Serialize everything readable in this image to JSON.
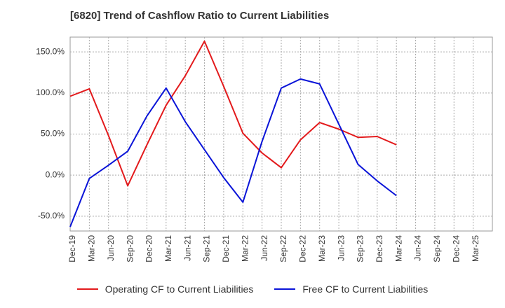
{
  "title": "[6820]  Trend of Cashflow Ratio to Current Liabilities",
  "chart_data": {
    "type": "line",
    "title": "[6820]  Trend of Cashflow Ratio to Current Liabilities",
    "categories": [
      "Dec-19",
      "Mar-20",
      "Jun-20",
      "Sep-20",
      "Dec-20",
      "Mar-21",
      "Jun-21",
      "Sep-21",
      "Dec-21",
      "Mar-22",
      "Jun-22",
      "Sep-22",
      "Dec-22",
      "Mar-23",
      "Jun-23",
      "Sep-23",
      "Dec-23",
      "Mar-24",
      "Jun-24",
      "Sep-24",
      "Dec-24",
      "Mar-25"
    ],
    "y_ticks": [
      "150.0%",
      "100.0%",
      "50.0%",
      "0.0%",
      "-50.0%"
    ],
    "y_tick_values": [
      150,
      100,
      50,
      0,
      -50
    ],
    "ylim": [
      -68,
      168
    ],
    "grid": true,
    "legend_position": "bottom",
    "series": [
      {
        "name": "Operating CF to Current Liabilities",
        "color": "#e31a1c",
        "values": [
          96,
          105,
          48,
          -13,
          37,
          85,
          121,
          163,
          108,
          51,
          27,
          9,
          43,
          64,
          56,
          46,
          47,
          37,
          null,
          null,
          null,
          null
        ]
      },
      {
        "name": "Free CF to Current Liabilities",
        "color": "#0a14d8",
        "values": [
          -63,
          -4,
          12,
          29,
          72,
          106,
          65,
          31,
          -3,
          -33,
          41,
          106,
          117,
          111,
          62,
          13,
          -7,
          -25,
          null,
          null,
          null,
          null
        ]
      }
    ]
  }
}
